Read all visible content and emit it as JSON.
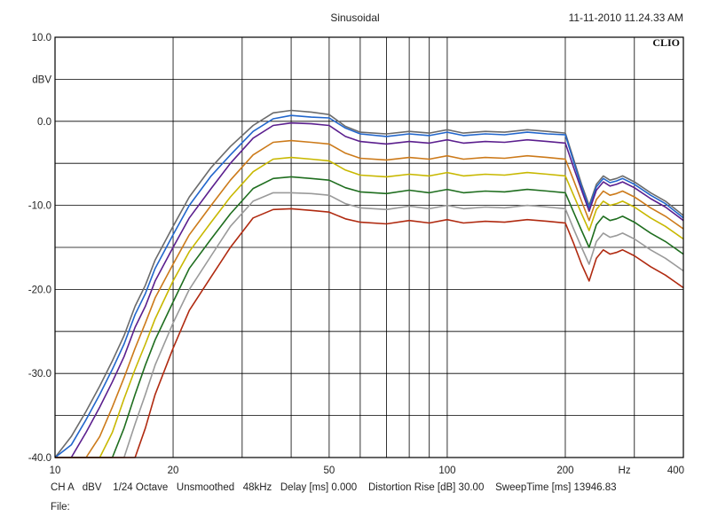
{
  "header": {
    "title": "Sinusoidal",
    "timestamp": "11-11-2010 11.24.33 AM",
    "brand": "CLIO"
  },
  "footer": {
    "line1": "CH A   dBV    1/24 Octave   Unsmoothed   48kHz   Delay [ms] 0.000    Distortion Rise [dB] 30.00    SweepTime [ms] 13946.83",
    "line2": "File:"
  },
  "chart_data": {
    "type": "line",
    "title": "Sinusoidal",
    "xlabel": "Hz",
    "ylabel": "dBV",
    "xscale": "log",
    "xlim": [
      10,
      400
    ],
    "ylim": [
      -40,
      10
    ],
    "grid": true,
    "x_ticks": [
      10,
      20,
      50,
      100,
      200,
      400
    ],
    "x_tick_labels": [
      "10",
      "20",
      "50",
      "100",
      "200",
      "400"
    ],
    "x_minor_gridlines": [
      30,
      40,
      60,
      70,
      80,
      90,
      300
    ],
    "y_ticks": [
      10,
      0,
      -10,
      -20,
      -30,
      -40
    ],
    "y_tick_labels": [
      "10.0",
      "0.0",
      "-10.0",
      "-20.0",
      "-30.0",
      "-40.0"
    ],
    "y_unit_label": "dBV",
    "x_unit_label": "Hz",
    "x": [
      10,
      11,
      12,
      13,
      14,
      15,
      16,
      17,
      18,
      20,
      22,
      25,
      28,
      32,
      36,
      40,
      45,
      50,
      55,
      60,
      70,
      80,
      90,
      100,
      110,
      125,
      140,
      160,
      180,
      200,
      210,
      220,
      230,
      240,
      250,
      260,
      270,
      280,
      300,
      330,
      360,
      400
    ],
    "series": [
      {
        "color": "#6b6b6b",
        "values": [
          -40.0,
          -37.5,
          -34.5,
          -31.5,
          -28.5,
          -25.5,
          -22.0,
          -19.5,
          -16.5,
          -12.5,
          -9.0,
          -5.5,
          -3.0,
          -0.5,
          1.0,
          1.3,
          1.1,
          0.8,
          -0.6,
          -1.3,
          -1.5,
          -1.2,
          -1.4,
          -1.0,
          -1.4,
          -1.2,
          -1.3,
          -1.0,
          -1.2,
          -1.4,
          -4.5,
          -7.5,
          -10.0,
          -7.5,
          -6.5,
          -7.0,
          -6.8,
          -6.5,
          -7.2,
          -8.5,
          -9.5,
          -11.2
        ]
      },
      {
        "color": "#2266cc",
        "values": [
          -40.0,
          -38.5,
          -35.5,
          -32.5,
          -29.5,
          -26.5,
          -23.0,
          -20.5,
          -17.5,
          -13.5,
          -10.0,
          -6.5,
          -4.0,
          -1.2,
          0.3,
          0.7,
          0.5,
          0.4,
          -0.8,
          -1.5,
          -1.8,
          -1.5,
          -1.7,
          -1.3,
          -1.7,
          -1.5,
          -1.6,
          -1.3,
          -1.5,
          -1.6,
          -4.8,
          -7.8,
          -10.3,
          -7.8,
          -6.8,
          -7.3,
          -7.1,
          -6.8,
          -7.5,
          -8.8,
          -9.8,
          -11.5
        ]
      },
      {
        "color": "#5b1f8e",
        "values": [
          -40.0,
          -40.0,
          -37.0,
          -34.0,
          -31.0,
          -28.0,
          -24.5,
          -22.0,
          -19.0,
          -15.0,
          -11.5,
          -8.0,
          -5.0,
          -2.0,
          -0.5,
          -0.2,
          -0.3,
          -0.5,
          -1.8,
          -2.4,
          -2.7,
          -2.4,
          -2.6,
          -2.2,
          -2.6,
          -2.4,
          -2.5,
          -2.2,
          -2.4,
          -2.6,
          -5.5,
          -8.2,
          -10.7,
          -8.2,
          -7.2,
          -7.7,
          -7.5,
          -7.2,
          -7.9,
          -9.2,
          -10.2,
          -11.8
        ]
      },
      {
        "color": "#cc7a1a",
        "values": [
          -40.0,
          -40.0,
          -40.0,
          -37.5,
          -34.0,
          -30.5,
          -27.0,
          -24.0,
          -21.0,
          -17.0,
          -13.5,
          -10.0,
          -7.0,
          -4.0,
          -2.5,
          -2.3,
          -2.5,
          -2.7,
          -3.8,
          -4.4,
          -4.6,
          -4.3,
          -4.5,
          -4.1,
          -4.5,
          -4.3,
          -4.4,
          -4.1,
          -4.3,
          -4.5,
          -7.0,
          -9.5,
          -11.8,
          -9.3,
          -8.3,
          -8.8,
          -8.6,
          -8.3,
          -9.0,
          -10.3,
          -11.3,
          -12.8
        ]
      },
      {
        "color": "#c8b800",
        "values": [
          -40.0,
          -40.0,
          -40.0,
          -40.0,
          -37.0,
          -33.0,
          -29.5,
          -26.5,
          -23.5,
          -19.0,
          -15.5,
          -12.0,
          -9.0,
          -6.0,
          -4.5,
          -4.3,
          -4.5,
          -4.7,
          -5.8,
          -6.4,
          -6.6,
          -6.3,
          -6.5,
          -6.1,
          -6.5,
          -6.3,
          -6.4,
          -6.1,
          -6.3,
          -6.5,
          -8.8,
          -11.0,
          -13.0,
          -10.5,
          -9.5,
          -10.0,
          -9.8,
          -9.5,
          -10.2,
          -11.5,
          -12.5,
          -14.0
        ]
      },
      {
        "color": "#1f6e1f",
        "values": [
          -40.0,
          -40.0,
          -40.0,
          -40.0,
          -40.0,
          -36.5,
          -32.5,
          -29.0,
          -26.0,
          -21.5,
          -17.5,
          -14.0,
          -11.0,
          -8.0,
          -6.8,
          -6.6,
          -6.8,
          -7.0,
          -7.9,
          -8.4,
          -8.6,
          -8.2,
          -8.5,
          -8.1,
          -8.5,
          -8.3,
          -8.4,
          -8.1,
          -8.3,
          -8.5,
          -10.8,
          -13.0,
          -15.0,
          -12.3,
          -11.3,
          -11.8,
          -11.6,
          -11.3,
          -12.0,
          -13.3,
          -14.3,
          -15.8
        ]
      },
      {
        "color": "#9a9a9a",
        "values": [
          -40.0,
          -40.0,
          -40.0,
          -40.0,
          -40.0,
          -40.0,
          -36.0,
          -32.5,
          -29.0,
          -24.0,
          -20.0,
          -16.0,
          -12.5,
          -9.5,
          -8.5,
          -8.5,
          -8.6,
          -8.8,
          -9.8,
          -10.3,
          -10.5,
          -10.1,
          -10.4,
          -10.0,
          -10.4,
          -10.2,
          -10.3,
          -10.0,
          -10.2,
          -10.4,
          -12.8,
          -15.0,
          -17.0,
          -14.3,
          -13.3,
          -13.8,
          -13.6,
          -13.3,
          -14.0,
          -15.3,
          -16.3,
          -17.8
        ]
      },
      {
        "color": "#b02a10",
        "values": [
          -40.0,
          -40.0,
          -40.0,
          -40.0,
          -40.0,
          -40.0,
          -40.0,
          -36.5,
          -32.5,
          -27.0,
          -22.5,
          -18.5,
          -15.0,
          -11.5,
          -10.5,
          -10.4,
          -10.6,
          -10.8,
          -11.6,
          -12.0,
          -12.2,
          -11.8,
          -12.1,
          -11.7,
          -12.1,
          -11.9,
          -12.0,
          -11.7,
          -11.9,
          -12.1,
          -14.5,
          -17.0,
          -19.0,
          -16.3,
          -15.3,
          -15.8,
          -15.6,
          -15.3,
          -16.0,
          -17.3,
          -18.3,
          -19.8
        ]
      }
    ]
  }
}
